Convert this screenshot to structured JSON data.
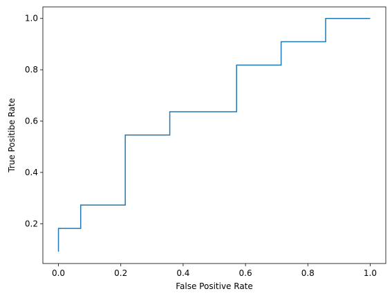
{
  "chart_data": {
    "type": "line",
    "step": "post",
    "xlabel": "False Positive Rate",
    "ylabel": "True Positibe Rate",
    "xlim": [
      -0.05,
      1.05
    ],
    "ylim": [
      0.045,
      1.045
    ],
    "xticks": [
      0.0,
      0.2,
      0.4,
      0.6,
      0.8,
      1.0
    ],
    "yticks": [
      0.2,
      0.4,
      0.6,
      0.8,
      1.0
    ],
    "grid": false,
    "line_color": "#1f77b4",
    "series": [
      {
        "x": [
          0.0,
          0.0,
          0.0714,
          0.0714,
          0.2143,
          0.2143,
          0.3571,
          0.3571,
          0.5714,
          0.5714,
          0.7143,
          0.7143,
          0.8571,
          0.8571,
          1.0
        ],
        "y": [
          0.0909,
          0.1818,
          0.1818,
          0.2727,
          0.2727,
          0.5455,
          0.5455,
          0.6364,
          0.6364,
          0.8182,
          0.8182,
          0.9091,
          0.9091,
          1.0,
          1.0
        ]
      }
    ]
  }
}
